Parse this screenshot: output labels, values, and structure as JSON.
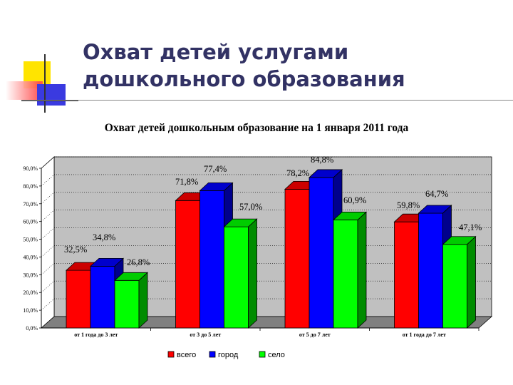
{
  "slide": {
    "title_line1": "Охват детей услугами",
    "title_line2": "дошкольного образования"
  },
  "chart_data": {
    "type": "bar",
    "title": "Охват детей дошкольным образование на 1 января 2011 года",
    "categories": [
      "от 1 года до 3 лет",
      "от 3 до 5 лет",
      "от 5 до 7 лет",
      "от 1 года до 7 лет"
    ],
    "series": [
      {
        "name": "всего",
        "color": "#ff0000",
        "values": [
          32.5,
          71.8,
          78.2,
          59.8
        ],
        "labels": [
          "32,5%",
          "71,8%",
          "78,2%",
          "59,8%"
        ]
      },
      {
        "name": "город",
        "color": "#0000ff",
        "values": [
          34.8,
          77.4,
          84.8,
          64.7
        ],
        "labels": [
          "34,8%",
          "77,4%",
          "84,8%",
          "64,7%"
        ]
      },
      {
        "name": "село",
        "color": "#00ff00",
        "values": [
          26.8,
          57.0,
          60.9,
          47.1
        ],
        "labels": [
          "26,8%",
          "57,0%",
          "60,9%",
          "47,1%"
        ]
      }
    ],
    "ylim": [
      0,
      90
    ],
    "yticks": [
      "0,0%",
      "10,0%",
      "20,0%",
      "30,0%",
      "40,0%",
      "50,0%",
      "60,0%",
      "70,0%",
      "80,0%",
      "90,0%"
    ],
    "grid": true,
    "legend_position": "bottom",
    "chart_type_detail": "3D clustered column"
  }
}
